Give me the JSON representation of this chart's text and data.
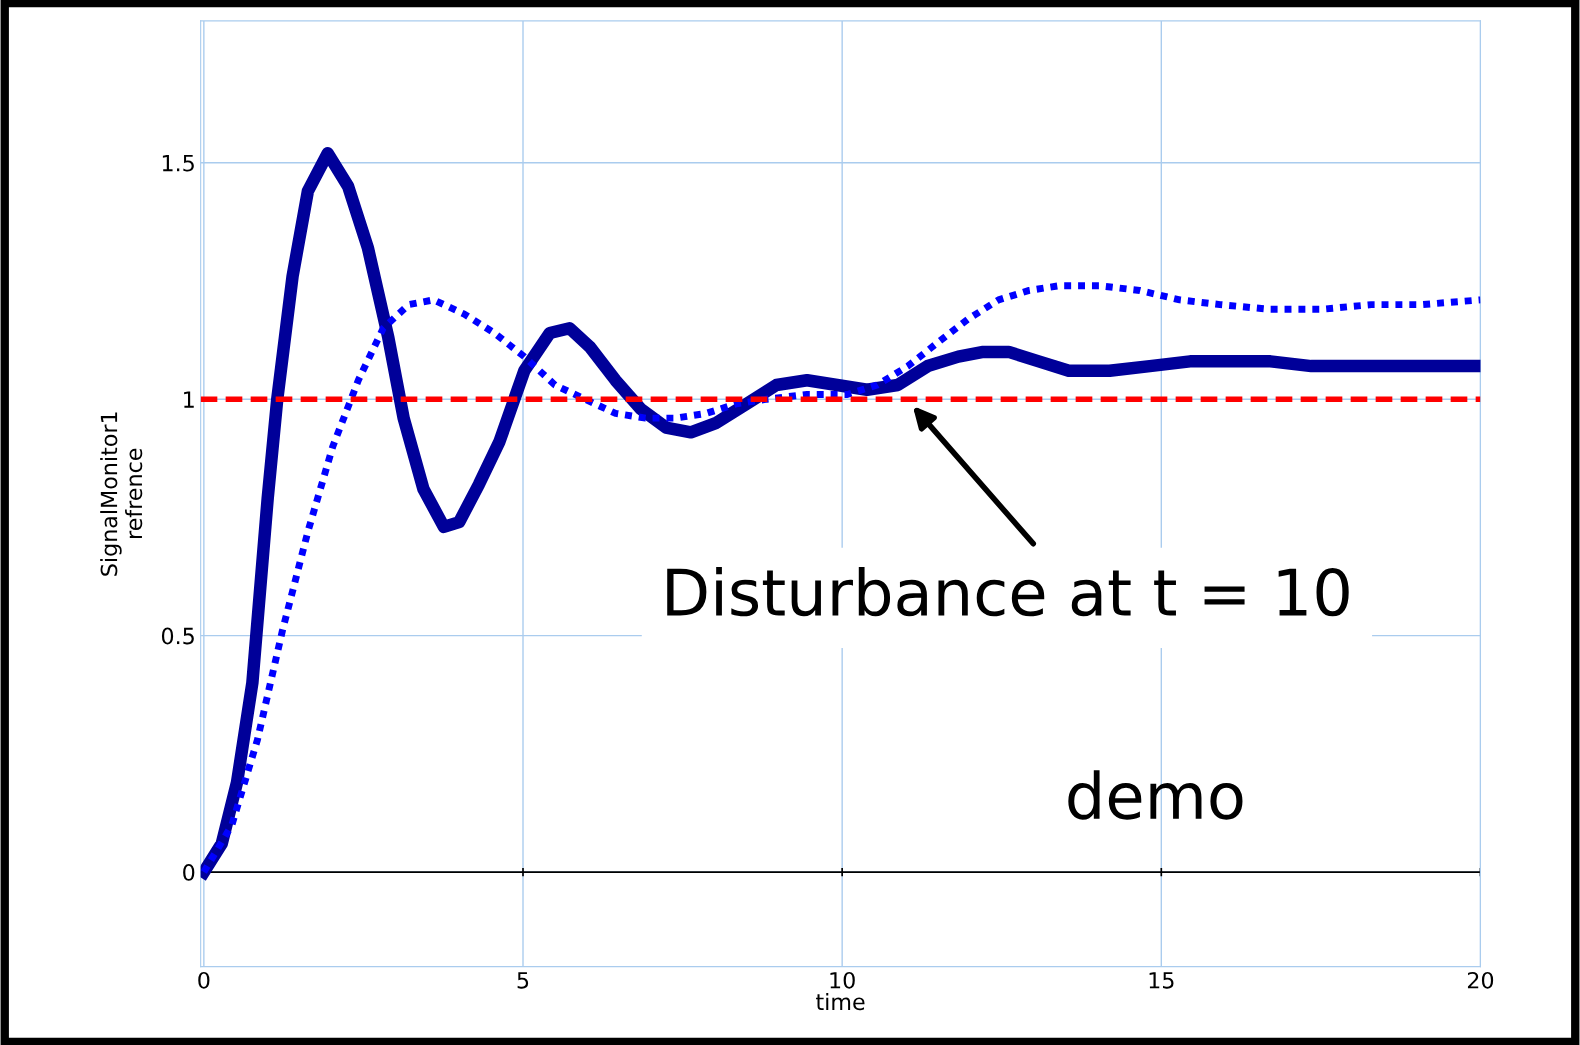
{
  "chart_data": {
    "type": "line",
    "xlabel": "time",
    "ylabel": "SignalMonitor1\nrefrence",
    "xlim": [
      -0.05,
      20
    ],
    "ylim": [
      -0.2,
      1.8
    ],
    "xticks": [
      0,
      5,
      10,
      15,
      20
    ],
    "yticks": [
      0,
      0.5,
      1,
      1.5
    ],
    "grid": true,
    "series": [
      {
        "color": "#000099",
        "line_style": "solid",
        "x": [
          0,
          0.28,
          0.52,
          0.76,
          1.0,
          1.15,
          1.39,
          1.63,
          1.94,
          2.26,
          2.57,
          2.89,
          3.13,
          3.44,
          3.76,
          4.0,
          4.31,
          4.63,
          5.02,
          5.42,
          5.73,
          6.05,
          6.45,
          6.84,
          7.24,
          7.63,
          8.03,
          8.5,
          8.97,
          9.45,
          9.92,
          10.39,
          10.87,
          11.34,
          11.82,
          12.21,
          12.61,
          13.08,
          13.55,
          14.19,
          14.82,
          15.45,
          16.08,
          16.71,
          17.35,
          18.45,
          20
        ],
        "values": [
          0,
          0.06,
          0.19,
          0.4,
          0.79,
          1.0,
          1.26,
          1.44,
          1.52,
          1.45,
          1.32,
          1.13,
          0.96,
          0.81,
          0.73,
          0.74,
          0.82,
          0.91,
          1.06,
          1.14,
          1.15,
          1.11,
          1.04,
          0.98,
          0.94,
          0.93,
          0.95,
          0.99,
          1.03,
          1.04,
          1.03,
          1.02,
          1.03,
          1.07,
          1.09,
          1.1,
          1.1,
          1.08,
          1.06,
          1.06,
          1.07,
          1.08,
          1.08,
          1.08,
          1.07,
          1.07,
          1.07
        ]
      },
      {
        "color": "#0000ff",
        "line_style": "dotted",
        "x": [
          0,
          0.44,
          0.84,
          1.23,
          1.63,
          2.02,
          2.42,
          2.81,
          3.21,
          3.6,
          4.08,
          4.55,
          5.02,
          5.5,
          5.97,
          6.45,
          6.92,
          7.39,
          7.87,
          8.34,
          8.82,
          9.45,
          10.08,
          10.55,
          11.03,
          11.5,
          11.98,
          12.45,
          12.93,
          13.4,
          14.03,
          14.66,
          15.29,
          15.92,
          16.71,
          17.5,
          18.29,
          19.08,
          20
        ],
        "values": [
          0,
          0.1,
          0.28,
          0.51,
          0.72,
          0.9,
          1.04,
          1.15,
          1.2,
          1.21,
          1.18,
          1.14,
          1.09,
          1.03,
          1.0,
          0.97,
          0.96,
          0.96,
          0.97,
          0.99,
          1.0,
          1.01,
          1.01,
          1.03,
          1.07,
          1.12,
          1.17,
          1.21,
          1.23,
          1.24,
          1.24,
          1.23,
          1.21,
          1.2,
          1.19,
          1.19,
          1.2,
          1.2,
          1.21
        ]
      }
    ],
    "ref_lines": [
      {
        "axis": "y",
        "value": 1,
        "color": "#ff0000",
        "line_style": "dashed"
      }
    ],
    "annotations": [
      "Disturbance at t = 10",
      "demo"
    ],
    "marker": "none",
    "legend": false
  }
}
